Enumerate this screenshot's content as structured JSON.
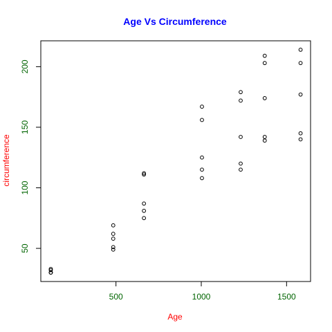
{
  "chart_data": {
    "type": "scatter",
    "title": "Age Vs Circumference",
    "xlabel": "Age",
    "ylabel": "circumference",
    "xlim": [
      118,
      1582
    ],
    "ylim": [
      30,
      214
    ],
    "x_ticks": [
      500,
      1000,
      1500
    ],
    "y_ticks": [
      50,
      100,
      150,
      200
    ],
    "grid": false,
    "colors": {
      "title": "#0000ff",
      "axis_labels": "#ff0000",
      "tick_labels": "#006400",
      "points": "#000000",
      "axes": "#000000"
    },
    "points": [
      {
        "x": 118,
        "y": 30
      },
      {
        "x": 118,
        "y": 33
      },
      {
        "x": 118,
        "y": 30
      },
      {
        "x": 118,
        "y": 32
      },
      {
        "x": 118,
        "y": 30
      },
      {
        "x": 484,
        "y": 58
      },
      {
        "x": 484,
        "y": 69
      },
      {
        "x": 484,
        "y": 51
      },
      {
        "x": 484,
        "y": 62
      },
      {
        "x": 484,
        "y": 49
      },
      {
        "x": 664,
        "y": 87
      },
      {
        "x": 664,
        "y": 111
      },
      {
        "x": 664,
        "y": 75
      },
      {
        "x": 664,
        "y": 112
      },
      {
        "x": 664,
        "y": 81
      },
      {
        "x": 1004,
        "y": 115
      },
      {
        "x": 1004,
        "y": 156
      },
      {
        "x": 1004,
        "y": 108
      },
      {
        "x": 1004,
        "y": 167
      },
      {
        "x": 1004,
        "y": 125
      },
      {
        "x": 1231,
        "y": 120
      },
      {
        "x": 1231,
        "y": 172
      },
      {
        "x": 1231,
        "y": 115
      },
      {
        "x": 1231,
        "y": 179
      },
      {
        "x": 1231,
        "y": 142
      },
      {
        "x": 1372,
        "y": 142
      },
      {
        "x": 1372,
        "y": 203
      },
      {
        "x": 1372,
        "y": 139
      },
      {
        "x": 1372,
        "y": 209
      },
      {
        "x": 1372,
        "y": 174
      },
      {
        "x": 1582,
        "y": 145
      },
      {
        "x": 1582,
        "y": 203
      },
      {
        "x": 1582,
        "y": 140
      },
      {
        "x": 1582,
        "y": 214
      },
      {
        "x": 1582,
        "y": 177
      }
    ]
  }
}
